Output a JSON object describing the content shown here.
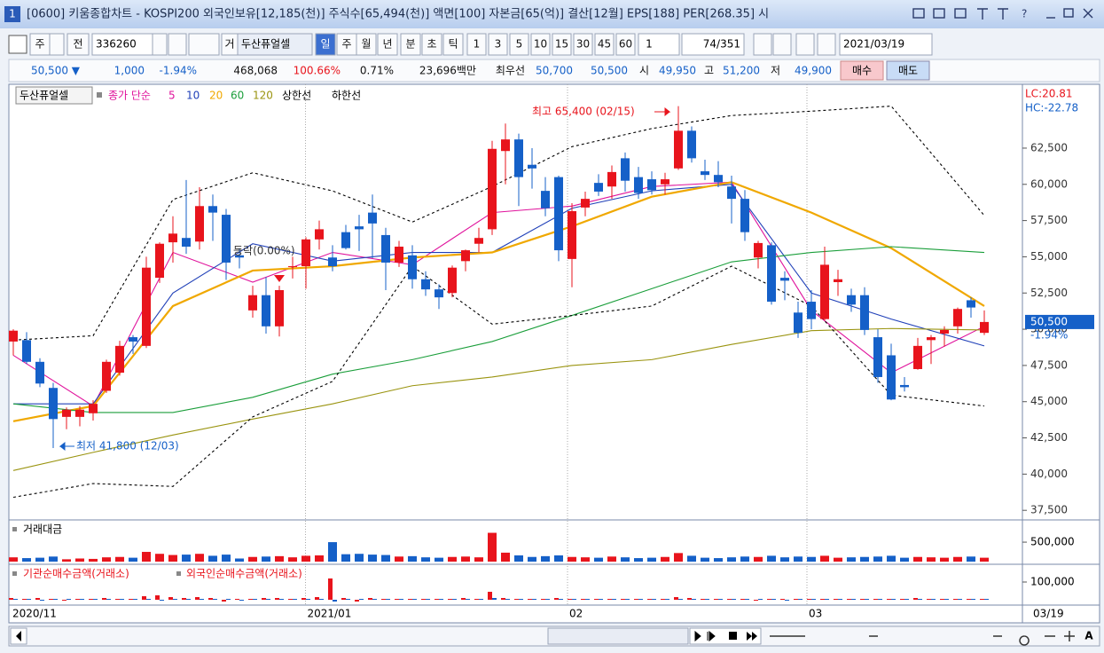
{
  "window": {
    "number": "1",
    "title": "[0600] 키움종합차트 - KOSPI200 외국인보유[12,185(천)] 주식수[65,494(천)] 액면[100] 자본금[65(억)] 결산[12월] EPS[188] PER[268.35] 시"
  },
  "toolbar": {
    "period": "주",
    "prev": "전",
    "code": "336260",
    "go": "거",
    "name": "두산퓨얼셀",
    "tabs": [
      "일",
      "주",
      "월",
      "년",
      "분",
      "초",
      "틱"
    ],
    "numbers": [
      "1",
      "3",
      "5",
      "10",
      "15",
      "30",
      "45",
      "60"
    ],
    "count": "1",
    "range": "74/351",
    "date": "2021/03/19"
  },
  "quote": {
    "price": "50,500 ▼",
    "change": "1,000",
    "rate": "-1.94%",
    "volume": "468,068",
    "ratio": "100.66%",
    "turnover": "0.71%",
    "amount": "23,696백만",
    "best_label": "최우선",
    "ask": "50,700",
    "bid": "50,500",
    "open_label": "시",
    "open": "49,950",
    "high_label": "고",
    "high": "51,200",
    "low_label": "저",
    "low": "49,900",
    "buy": "매수",
    "sell": "매도"
  },
  "chart_data": {
    "type": "candlestick",
    "name": "두산퓨얼셀",
    "ma_label": "종가 단순",
    "ohlc": [
      [
        49150,
        50000,
        48200,
        49900
      ],
      [
        49250,
        49800,
        47600,
        47750
      ],
      [
        47750,
        48000,
        46000,
        46250
      ],
      [
        45950,
        46300,
        41800,
        43800
      ],
      [
        43950,
        44600,
        43100,
        44450
      ],
      [
        43950,
        44700,
        43300,
        44450
      ],
      [
        44200,
        45100,
        43700,
        44850
      ],
      [
        45750,
        47900,
        45600,
        47750
      ],
      [
        47000,
        49200,
        46800,
        48850
      ],
      [
        49450,
        49600,
        48300,
        49150
      ],
      [
        48850,
        55000,
        48700,
        54250
      ],
      [
        53550,
        56000,
        53200,
        55900
      ],
      [
        56000,
        57800,
        54600,
        56600
      ],
      [
        56300,
        60300,
        55200,
        55700
      ],
      [
        56050,
        59800,
        55500,
        58500
      ],
      [
        58500,
        59300,
        56100,
        58050
      ],
      [
        57900,
        58300,
        53400,
        54600
      ],
      [
        55100,
        55600,
        54200,
        54950
      ],
      [
        51300,
        53000,
        50800,
        52350
      ],
      [
        52350,
        53600,
        49700,
        50200
      ],
      [
        50200,
        53000,
        49500,
        52700
      ],
      [
        54300,
        55000,
        53500,
        54350
      ],
      [
        54350,
        56350,
        52800,
        56200
      ],
      [
        56200,
        57500,
        55500,
        56900
      ],
      [
        54950,
        55800,
        54000,
        54350
      ],
      [
        56700,
        57200,
        55500,
        55600
      ],
      [
        57100,
        57900,
        55400,
        56900
      ],
      [
        58050,
        59300,
        54900,
        57300
      ],
      [
        56500,
        57000,
        52700,
        54600
      ],
      [
        54600,
        56100,
        54300,
        55700
      ],
      [
        55100,
        55800,
        52800,
        53450
      ],
      [
        53450,
        54000,
        52300,
        52750
      ],
      [
        52750,
        53100,
        51400,
        52200
      ],
      [
        52500,
        54400,
        52200,
        54250
      ],
      [
        54700,
        55500,
        54000,
        55450
      ],
      [
        55900,
        57000,
        55300,
        56300
      ],
      [
        56900,
        63000,
        56500,
        62450
      ],
      [
        62300,
        64200,
        60000,
        63100
      ],
      [
        63100,
        63500,
        58500,
        60500
      ],
      [
        61350,
        62500,
        59700,
        61100
      ],
      [
        59550,
        60500,
        57800,
        58350
      ],
      [
        60500,
        60600,
        54700,
        55450
      ],
      [
        54850,
        58700,
        52900,
        58150
      ],
      [
        58400,
        59500,
        57800,
        59000
      ],
      [
        60100,
        60700,
        59200,
        59500
      ],
      [
        59850,
        61300,
        59000,
        60850
      ],
      [
        61800,
        62200,
        59500,
        60250
      ],
      [
        60500,
        61200,
        59000,
        59400
      ],
      [
        60350,
        60900,
        59300,
        59600
      ],
      [
        60000,
        60800,
        59300,
        60350
      ],
      [
        61100,
        65400,
        61000,
        63700
      ],
      [
        63700,
        64000,
        61500,
        61800
      ],
      [
        60900,
        61700,
        60300,
        60650
      ],
      [
        60650,
        61600,
        59800,
        60150
      ],
      [
        59850,
        60600,
        57300,
        59000
      ],
      [
        59000,
        59600,
        56100,
        56700
      ],
      [
        54950,
        56100,
        54200,
        55950
      ],
      [
        55800,
        56000,
        51700,
        51900
      ],
      [
        53550,
        54000,
        52000,
        53350
      ],
      [
        51150,
        51900,
        49400,
        49750
      ],
      [
        51900,
        52700,
        50000,
        50700
      ],
      [
        50700,
        55700,
        50600,
        54450
      ],
      [
        53250,
        54100,
        52300,
        53450
      ],
      [
        52350,
        52800,
        51200,
        51700
      ],
      [
        52350,
        52900,
        49600,
        49950
      ],
      [
        49450,
        50000,
        46300,
        46700
      ],
      [
        48200,
        49000,
        45100,
        45150
      ],
      [
        46150,
        46700,
        45700,
        46000
      ],
      [
        47250,
        49400,
        47200,
        48850
      ],
      [
        49250,
        49600,
        47600,
        49450
      ],
      [
        49700,
        50200,
        48800,
        49950
      ],
      [
        50200,
        51500,
        49700,
        51400
      ],
      [
        52000,
        52200,
        50800,
        51500
      ],
      [
        49750,
        51300,
        49600,
        50500
      ]
    ],
    "line_x": [
      0,
      6,
      12,
      18,
      24,
      30,
      36,
      42,
      48,
      54,
      60,
      66,
      73
    ],
    "lines": [
      {
        "name": "5",
        "color": "#e0139c",
        "dash": false,
        "values": [
          48200,
          44700,
          55300,
          53250,
          55300,
          54450,
          58050,
          58500,
          59850,
          60150,
          51300,
          47000,
          50200
        ]
      },
      {
        "name": "10",
        "color": "#2040b8",
        "dash": false,
        "values": [
          44850,
          44850,
          52500,
          55900,
          54700,
          55300,
          55300,
          58350,
          59550,
          60000,
          52500,
          50700,
          48850
        ]
      },
      {
        "name": "20",
        "color": "#f0a800",
        "dash": false,
        "values": [
          43650,
          44700,
          51600,
          54050,
          54350,
          54950,
          55300,
          57100,
          59150,
          60150,
          58050,
          55600,
          51600
        ]
      },
      {
        "name": "60",
        "color": "#1a9e3a",
        "dash": false,
        "values": [
          44850,
          44250,
          44250,
          45300,
          46900,
          47900,
          49150,
          50950,
          52800,
          54650,
          55300,
          55700,
          55300
        ]
      },
      {
        "name": "120",
        "color": "#9a9410",
        "dash": false,
        "values": [
          40250,
          41500,
          42700,
          43800,
          44850,
          46100,
          46700,
          47500,
          47900,
          48950,
          49900,
          50050,
          49950
        ]
      },
      {
        "name": "상한선",
        "color": "#000000",
        "dash": true,
        "values": [
          49250,
          49550,
          58950,
          60800,
          59550,
          57400,
          59850,
          62600,
          63850,
          64750,
          65050,
          65400,
          57850
        ]
      },
      {
        "name": "하한선",
        "color": "#000000",
        "dash": true,
        "values": [
          38400,
          39350,
          39150,
          43950,
          46400,
          54350,
          50350,
          50950,
          51600,
          54350,
          51600,
          45450,
          44700
        ]
      }
    ],
    "up_color": "#e8141c",
    "down_color": "#1560c8",
    "ylim": [
      36900,
      66600
    ],
    "yticks": [
      {
        "value": 37500,
        "label": "37,500"
      },
      {
        "value": 40000,
        "label": "40,000"
      },
      {
        "value": 42500,
        "label": "42,500"
      },
      {
        "value": 45000,
        "label": "45,000"
      },
      {
        "value": 47500,
        "label": "47,500"
      },
      {
        "value": 50000,
        "label": "50,000"
      },
      {
        "value": 52500,
        "label": "52,500"
      },
      {
        "value": 55000,
        "label": "55,000"
      },
      {
        "value": 57500,
        "label": "57,500"
      },
      {
        "value": 60000,
        "label": "60,000"
      },
      {
        "value": 62500,
        "label": "62,500"
      }
    ],
    "xticks": [
      {
        "value": 0,
        "label": "2020/11"
      },
      {
        "value": 21.5,
        "label": "2021/01"
      },
      {
        "value": 41.2,
        "label": "02"
      },
      {
        "value": 59.2,
        "label": "03"
      }
    ],
    "last_date": "03/19",
    "last_price": "50,500",
    "last_rate": "-1.94%",
    "lc": "LC:20.81",
    "hc": "HC:-22.78",
    "annotations": {
      "high": "최고 65,400 (02/15)",
      "low": "최저 41,800 (12/03)",
      "mark": "등락(0.00%)"
    },
    "volume": {
      "title": "거래대금",
      "ylim": [
        0,
        980000
      ],
      "yticks": [
        {
          "value": 500000,
          "label": "500,000"
        }
      ],
      "values": [
        110000,
        90000,
        100000,
        130000,
        60000,
        80000,
        70000,
        110000,
        120000,
        100000,
        250000,
        200000,
        170000,
        180000,
        200000,
        150000,
        180000,
        80000,
        120000,
        130000,
        140000,
        110000,
        150000,
        160000,
        500000,
        190000,
        200000,
        180000,
        170000,
        130000,
        140000,
        110000,
        100000,
        120000,
        130000,
        110000,
        740000,
        230000,
        160000,
        120000,
        140000,
        160000,
        120000,
        110000,
        100000,
        130000,
        110000,
        90000,
        100000,
        120000,
        220000,
        150000,
        100000,
        90000,
        110000,
        130000,
        120000,
        150000,
        110000,
        130000,
        120000,
        150000,
        100000,
        110000,
        120000,
        130000,
        150000,
        100000,
        120000,
        110000,
        100000,
        120000,
        130000,
        100000
      ]
    },
    "netbuy": {
      "ylim": [
        -20000,
        180000
      ],
      "yticks": [
        {
          "value": 100000,
          "label": "100,000"
        }
      ],
      "series": [
        {
          "name": "기관순매수금액(거래소)",
          "color": "#e8141c",
          "values": [
            10000,
            5000,
            10000,
            5000,
            -5000,
            5000,
            5000,
            10000,
            5000,
            5000,
            20000,
            25000,
            15000,
            10000,
            15000,
            10000,
            -10000,
            5000,
            5000,
            10000,
            10000,
            5000,
            10000,
            15000,
            120000,
            10000,
            -10000,
            10000,
            5000,
            5000,
            5000,
            5000,
            5000,
            5000,
            10000,
            5000,
            45000,
            10000,
            5000,
            5000,
            5000,
            10000,
            5000,
            5000,
            5000,
            5000,
            5000,
            5000,
            5000,
            5000,
            15000,
            10000,
            5000,
            5000,
            5000,
            5000,
            -5000,
            5000,
            5000,
            5000,
            5000,
            5000,
            5000,
            5000,
            5000,
            5000,
            5000,
            5000,
            10000,
            5000,
            5000,
            5000,
            5000,
            5000
          ]
        },
        {
          "name": "외국인순매수금액(거래소)",
          "color": "#1560c8",
          "values": [
            5000,
            5000,
            -5000,
            5000,
            5000,
            5000,
            5000,
            5000,
            5000,
            5000,
            5000,
            -5000,
            5000,
            5000,
            5000,
            5000,
            5000,
            -5000,
            5000,
            5000,
            5000,
            5000,
            5000,
            5000,
            -10000,
            5000,
            5000,
            5000,
            5000,
            5000,
            5000,
            5000,
            5000,
            5000,
            5000,
            5000,
            10000,
            5000,
            5000,
            5000,
            5000,
            5000,
            5000,
            5000,
            5000,
            5000,
            5000,
            5000,
            5000,
            5000,
            5000,
            5000,
            5000,
            5000,
            5000,
            5000,
            5000,
            5000,
            -5000,
            5000,
            5000,
            5000,
            5000,
            5000,
            5000,
            5000,
            5000,
            5000,
            5000,
            5000,
            5000,
            5000,
            5000,
            5000
          ]
        }
      ]
    }
  }
}
